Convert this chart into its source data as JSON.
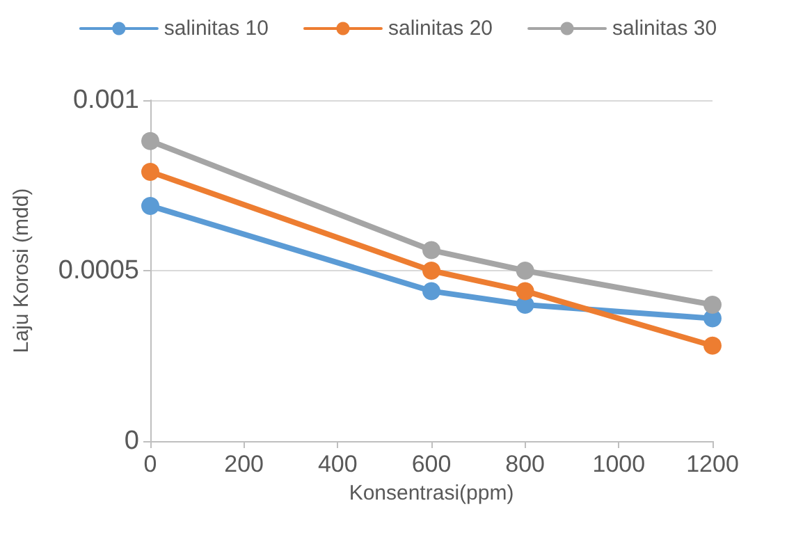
{
  "chart_data": {
    "type": "line",
    "xlabel": "Konsentrasi(ppm)",
    "ylabel": "Laju Korosi (mdd)",
    "x": [
      0,
      600,
      800,
      1200
    ],
    "series": [
      {
        "name": "salinitas 10",
        "color": "#5b9bd5",
        "values": [
          0.00069,
          0.00044,
          0.0004,
          0.00036
        ]
      },
      {
        "name": "salinitas 20",
        "color": "#ed7d31",
        "values": [
          0.00079,
          0.0005,
          0.00044,
          0.00028
        ]
      },
      {
        "name": "salinitas 30",
        "color": "#a5a5a5",
        "values": [
          0.00088,
          0.00056,
          0.0005,
          0.0004
        ]
      }
    ],
    "xlim": [
      0,
      1200
    ],
    "xticks": [
      0,
      200,
      400,
      600,
      800,
      1000,
      1200
    ],
    "ylim": [
      0,
      0.001
    ],
    "yticks": [
      0,
      0.0005,
      0.001
    ],
    "grid": "y",
    "legend": "top",
    "marker": "circle",
    "line_style": "solid"
  }
}
